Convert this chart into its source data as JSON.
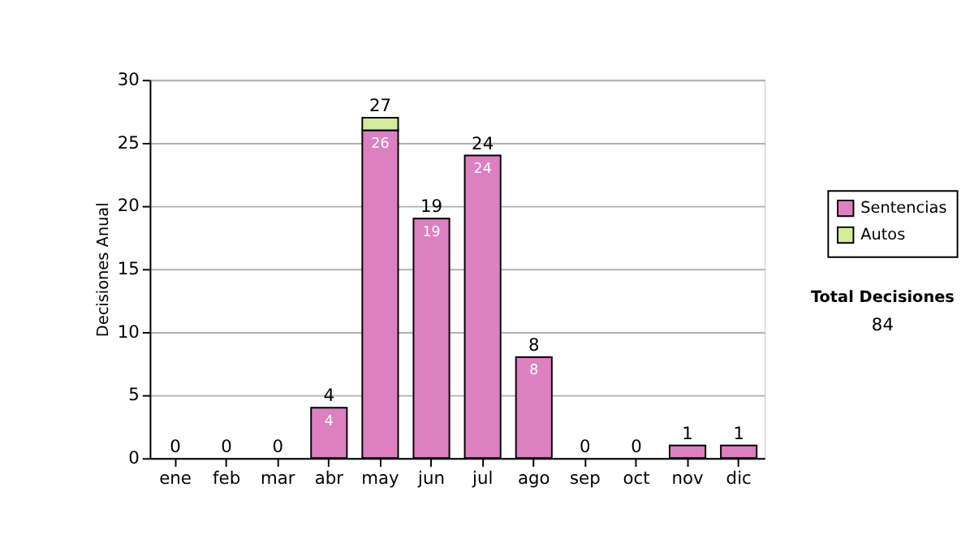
{
  "chart_data": {
    "type": "bar",
    "stacked": true,
    "ylabel": "Decisiones Anual",
    "categories": [
      "ene",
      "feb",
      "mar",
      "abr",
      "may",
      "jun",
      "jul",
      "ago",
      "sep",
      "oct",
      "nov",
      "dic"
    ],
    "series": [
      {
        "name": "Sentencias",
        "color": "#dd80c0",
        "values": [
          0,
          0,
          0,
          4,
          26,
          19,
          24,
          8,
          0,
          0,
          1,
          1
        ],
        "value_labels": [
          null,
          null,
          null,
          "4",
          "26",
          "19",
          "24",
          "8",
          null,
          null,
          null,
          null
        ]
      },
      {
        "name": "Autos",
        "color": "#d4ec98",
        "values": [
          0,
          0,
          0,
          0,
          1,
          0,
          0,
          0,
          0,
          0,
          0,
          0
        ]
      }
    ],
    "totals": [
      "0",
      "0",
      "0",
      "4",
      "27",
      "19",
      "24",
      "8",
      "0",
      "0",
      "1",
      "1"
    ],
    "ylim": [
      0,
      30
    ],
    "yticks": [
      0,
      5,
      10,
      15,
      20,
      25,
      30
    ],
    "grid": "y",
    "legend": "right",
    "annotations": [
      "Total Decisiones",
      "84"
    ]
  }
}
